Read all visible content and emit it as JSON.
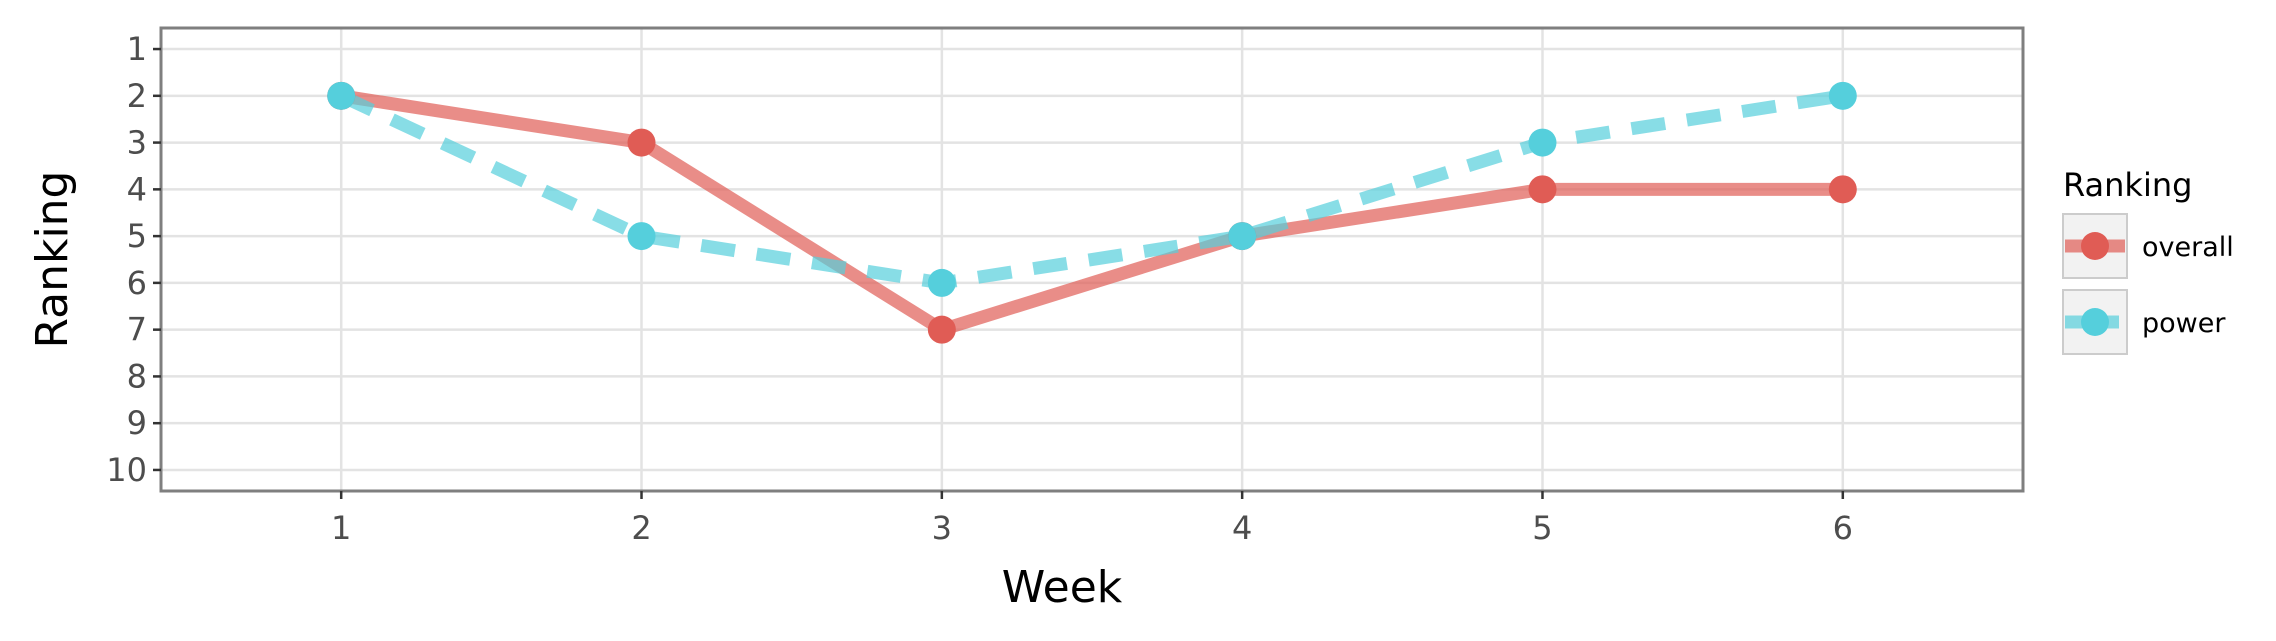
{
  "chart_data": {
    "type": "line",
    "title": "",
    "xlabel": "Week",
    "ylabel": "Ranking",
    "x": [
      1,
      2,
      3,
      4,
      5,
      6
    ],
    "x_ticks": [
      "1",
      "2",
      "3",
      "4",
      "5",
      "6"
    ],
    "xlim": [
      0.4,
      6.6
    ],
    "y_ticks": [
      "1",
      "2",
      "3",
      "4",
      "5",
      "6",
      "7",
      "8",
      "9",
      "10"
    ],
    "ylim": [
      10.45,
      0.55
    ],
    "y_reversed": true,
    "grid": true,
    "legend": {
      "title": "Ranking",
      "position": "right"
    },
    "series": [
      {
        "name": "overall",
        "values": [
          2,
          3,
          7,
          5,
          4,
          4
        ],
        "color": "#e05c55",
        "line_style": "solid"
      },
      {
        "name": "power",
        "values": [
          2,
          5,
          6,
          5,
          3,
          2
        ],
        "color": "#55cfdc",
        "line_style": "dashed"
      }
    ]
  }
}
